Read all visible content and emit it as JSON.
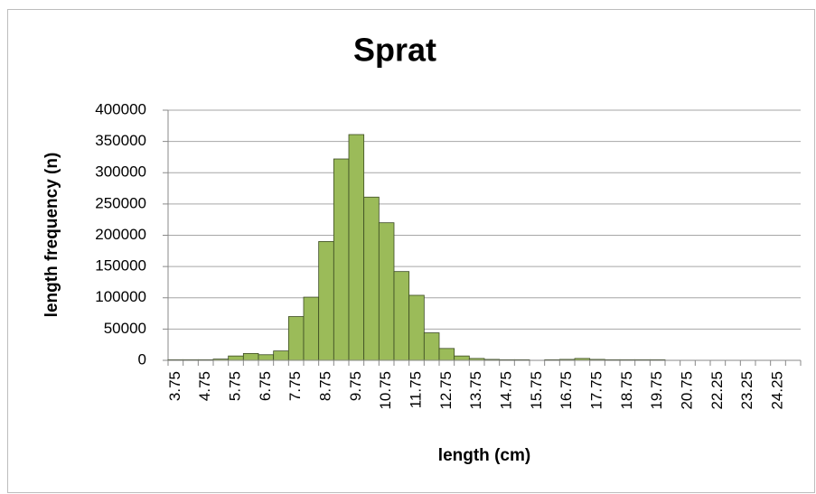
{
  "chart_data": {
    "type": "bar",
    "title": "Sprat",
    "x_label": "length (cm)",
    "y_label": "length frequency (n)",
    "categories": [
      "3.75",
      null,
      "4.75",
      null,
      "5.75",
      null,
      "6.75",
      null,
      "7.75",
      null,
      "8.75",
      null,
      "9.75",
      null,
      "10.75",
      null,
      "11.75",
      null,
      "12.75",
      null,
      "13.75",
      null,
      "14.75",
      null,
      "15.75",
      null,
      "16.75",
      null,
      "17.75",
      null,
      "18.75",
      null,
      "19.75",
      null,
      "20.75",
      null,
      "22.25",
      null,
      "23.25",
      null,
      "24.25",
      null
    ],
    "values": [
      1000,
      1000,
      1000,
      2000,
      7000,
      11000,
      9000,
      15000,
      70000,
      101000,
      190000,
      322000,
      361000,
      261000,
      220000,
      142000,
      104000,
      44000,
      19000,
      7000,
      3000,
      1500,
      1000,
      1000,
      0,
      1000,
      1500,
      3000,
      1500,
      1000,
      1000,
      1000,
      1000,
      0,
      0,
      0,
      0,
      0,
      0,
      0,
      0,
      0
    ],
    "color": "#9bbb59",
    "ylim": [
      0,
      400000
    ],
    "yticks": [
      0,
      50000,
      100000,
      150000,
      200000,
      250000,
      300000,
      350000,
      400000
    ],
    "grid": true
  }
}
